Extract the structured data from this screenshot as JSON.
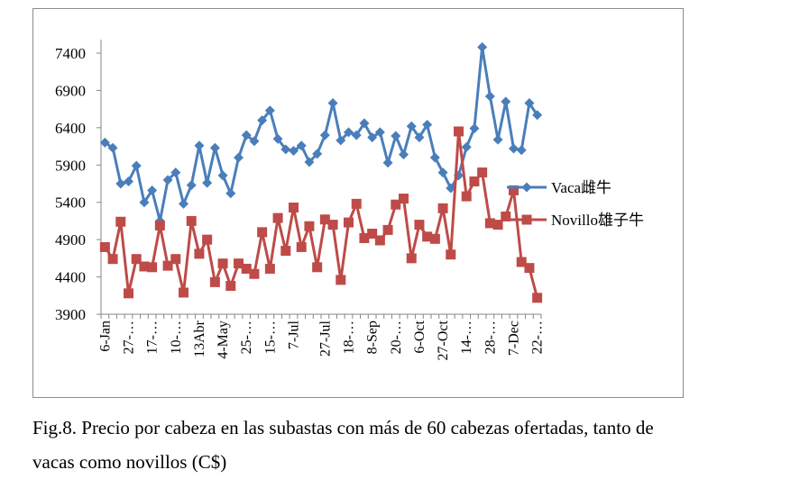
{
  "chart_data": {
    "type": "line",
    "title": "",
    "xlabel": "",
    "ylabel": "",
    "ylim": [
      3900,
      7650
    ],
    "yticks": [
      3900,
      4400,
      4900,
      5400,
      5900,
      6400,
      6900,
      7400
    ],
    "grid": false,
    "legend_position": "right",
    "x_tick_labels": [
      "6-Jan",
      "27-…",
      "17-…",
      "10-…",
      "13Abr",
      "4-May",
      "25-…",
      "15-…",
      "7-Jul",
      "27-Jul",
      "18-…",
      "8-Sep",
      "20-…",
      "6-Oct",
      "27-Oct",
      "14-…",
      "28-…",
      "7-Dec",
      "22-…"
    ],
    "series": [
      {
        "name": "Vaca雌牛",
        "color": "#4a7ebb",
        "marker": "diamond",
        "values": [
          6200,
          6130,
          5650,
          5680,
          5890,
          5400,
          5560,
          5150,
          5700,
          5800,
          5380,
          5630,
          6160,
          5660,
          6130,
          5760,
          5520,
          6000,
          6300,
          6220,
          6500,
          6630,
          6250,
          6110,
          6090,
          6160,
          5940,
          6050,
          6300,
          6730,
          6230,
          6340,
          6300,
          6460,
          6270,
          6340,
          5930,
          6290,
          6040,
          6420,
          6270,
          6440,
          6000,
          5800,
          5590,
          5760,
          6140,
          6390,
          7480,
          6820,
          6240,
          6750,
          6120,
          6100,
          6730,
          6570
        ]
      },
      {
        "name": "Novillo雄子牛",
        "color": "#be4b48",
        "marker": "square",
        "values": [
          4800,
          4640,
          5140,
          4180,
          4640,
          4540,
          4530,
          5090,
          4550,
          4640,
          4190,
          5150,
          4710,
          4900,
          4330,
          4580,
          4280,
          4580,
          4510,
          4440,
          5000,
          4510,
          5190,
          4750,
          5330,
          4800,
          5080,
          4530,
          5170,
          5100,
          4360,
          5130,
          5380,
          4920,
          4980,
          4890,
          5030,
          5370,
          5450,
          4650,
          5100,
          4940,
          4910,
          5320,
          4700,
          6350,
          5480,
          5680,
          5800,
          5120,
          5100,
          5210,
          5560,
          4600,
          4520,
          4120
        ]
      }
    ]
  },
  "caption": {
    "line1": "Fig.8. Precio por cabeza en las subastas con más de 60 cabezas ofertadas, tanto de",
    "line2": "vacas como novillos (C$)"
  }
}
